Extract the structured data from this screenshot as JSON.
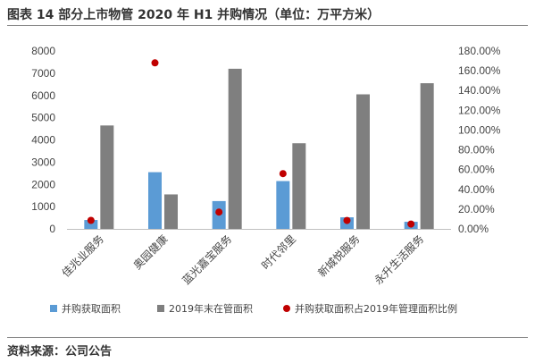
{
  "figure": {
    "title": "图表 14 部分上市物管 2020 年 H1 并购情况（单位：万平方米）",
    "source": "资料来源：公司公告"
  },
  "chart_data": {
    "type": "bar",
    "categories": [
      "佳兆业服务",
      "奥园健康",
      "蓝光嘉宝服务",
      "时代邻里",
      "新城悦服务",
      "永升生活服务"
    ],
    "series": [
      {
        "name": "并购获取面积",
        "type": "bar",
        "axis": "left",
        "color": "#5B9BD5",
        "values": [
          400,
          2550,
          1250,
          2150,
          520,
          320
        ]
      },
      {
        "name": "2019年末在管面积",
        "type": "bar",
        "axis": "left",
        "color": "#7F7F7F",
        "values": [
          4650,
          1550,
          7200,
          3850,
          6050,
          6550
        ]
      },
      {
        "name": "并购获取面积占2019年管理面积比例",
        "type": "scatter",
        "axis": "right",
        "color": "#C00000",
        "values": [
          8.6,
          168.0,
          17.0,
          55.9,
          8.5,
          4.9
        ]
      }
    ],
    "y_left": {
      "min": 0,
      "max": 8000,
      "step": 1000,
      "ticks": [
        "0",
        "1000",
        "2000",
        "3000",
        "4000",
        "5000",
        "6000",
        "7000",
        "8000"
      ]
    },
    "y_right": {
      "min": 0,
      "max": 180,
      "step": 20,
      "unit": "%",
      "ticks": [
        "0.00%",
        "20.00%",
        "40.00%",
        "60.00%",
        "80.00%",
        "100.00%",
        "120.00%",
        "140.00%",
        "160.00%",
        "180.00%"
      ]
    },
    "grid": false,
    "legend_position": "bottom"
  }
}
